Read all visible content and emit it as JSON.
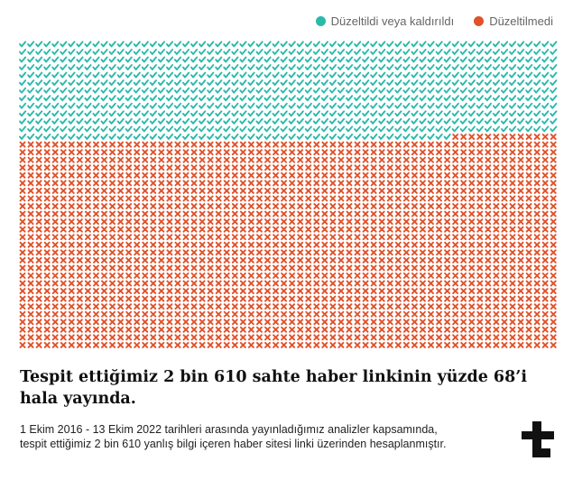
{
  "legend": [
    {
      "label": "Düzeltildi veya kaldırıldı",
      "color": "#2bb9aa"
    },
    {
      "label": "Düzeltilmedi",
      "color": "#e0522b"
    }
  ],
  "chart_data": {
    "type": "waffle",
    "total": 2610,
    "series": [
      {
        "name": "Düzeltildi veya kaldırıldı",
        "percent": 32,
        "color": "#2bb9aa",
        "icon": "checkmark-icon"
      },
      {
        "name": "Düzeltilmedi",
        "percent": 68,
        "color": "#e0522b",
        "icon": "cross-icon"
      }
    ]
  },
  "headline": "Tespit ettiğimiz 2 bin 610 sahte haber linkinin yüzde 68’i hala yayında.",
  "footnote": {
    "line1": "1 Ekim 2016 - 13 Ekim 2022 tarihleri arasında yayınladığımız analizler kapsamında,",
    "line2": "tespit ettiğimiz 2 bin 610 yanlış bilgi içeren haber sitesi linki üzerinden hesaplanmıştır."
  },
  "logo": {
    "icon": "teyit-logo-icon"
  }
}
